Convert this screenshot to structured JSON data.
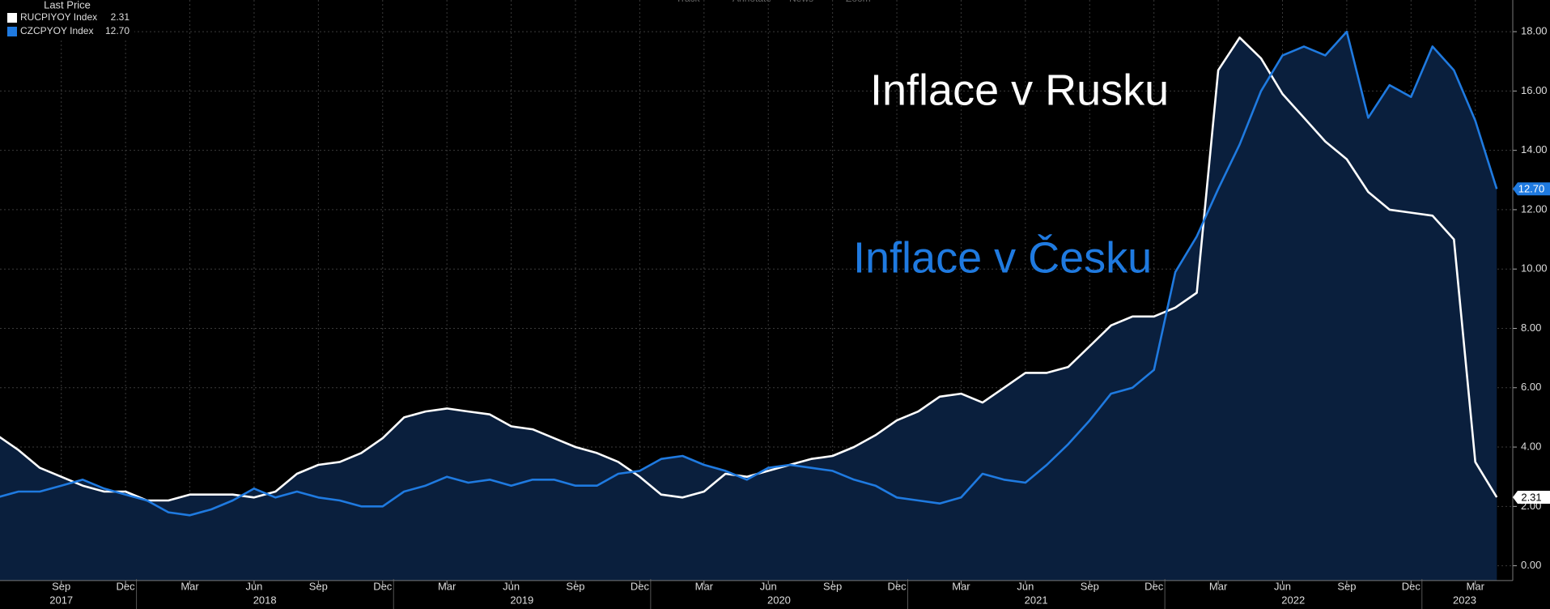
{
  "chart_data": {
    "type": "line",
    "legend_title": "Last Price",
    "toolbar": [
      "Track",
      "Annotate",
      "News",
      "Zoom"
    ],
    "annotations": [
      {
        "text": "Inflace  v Rusku",
        "color": "#ffffff"
      },
      {
        "text": "Inflace v Česku",
        "color": "#1f7ae0"
      }
    ],
    "x": [
      "2017-06",
      "2017-07",
      "2017-08",
      "2017-09",
      "2017-10",
      "2017-11",
      "2017-12",
      "2018-01",
      "2018-02",
      "2018-03",
      "2018-04",
      "2018-05",
      "2018-06",
      "2018-07",
      "2018-08",
      "2018-09",
      "2018-10",
      "2018-11",
      "2018-12",
      "2019-01",
      "2019-02",
      "2019-03",
      "2019-04",
      "2019-05",
      "2019-06",
      "2019-07",
      "2019-08",
      "2019-09",
      "2019-10",
      "2019-11",
      "2019-12",
      "2020-01",
      "2020-02",
      "2020-03",
      "2020-04",
      "2020-05",
      "2020-06",
      "2020-07",
      "2020-08",
      "2020-09",
      "2020-10",
      "2020-11",
      "2020-12",
      "2021-01",
      "2021-02",
      "2021-03",
      "2021-04",
      "2021-05",
      "2021-06",
      "2021-07",
      "2021-08",
      "2021-09",
      "2021-10",
      "2021-11",
      "2021-12",
      "2022-01",
      "2022-02",
      "2022-03",
      "2022-04",
      "2022-05",
      "2022-06",
      "2022-07",
      "2022-08",
      "2022-09",
      "2022-10",
      "2022-11",
      "2022-12",
      "2023-01",
      "2023-02",
      "2023-03",
      "2023-04"
    ],
    "xticks": [
      {
        "value": "2017-09",
        "label": "Sep"
      },
      {
        "value": "2017-12",
        "label": "Dec"
      },
      {
        "value": "2018-03",
        "label": "Mar"
      },
      {
        "value": "2018-06",
        "label": "Jun"
      },
      {
        "value": "2018-09",
        "label": "Sep"
      },
      {
        "value": "2018-12",
        "label": "Dec"
      },
      {
        "value": "2019-03",
        "label": "Mar"
      },
      {
        "value": "2019-06",
        "label": "Jun"
      },
      {
        "value": "2019-09",
        "label": "Sep"
      },
      {
        "value": "2019-12",
        "label": "Dec"
      },
      {
        "value": "2020-03",
        "label": "Mar"
      },
      {
        "value": "2020-06",
        "label": "Jun"
      },
      {
        "value": "2020-09",
        "label": "Sep"
      },
      {
        "value": "2020-12",
        "label": "Dec"
      },
      {
        "value": "2021-03",
        "label": "Mar"
      },
      {
        "value": "2021-06",
        "label": "Jun"
      },
      {
        "value": "2021-09",
        "label": "Sep"
      },
      {
        "value": "2021-12",
        "label": "Dec"
      },
      {
        "value": "2022-03",
        "label": "Mar"
      },
      {
        "value": "2022-06",
        "label": "Jun"
      },
      {
        "value": "2022-09",
        "label": "Sep"
      },
      {
        "value": "2022-12",
        "label": "Dec"
      },
      {
        "value": "2023-03",
        "label": "Mar"
      }
    ],
    "x_year_labels": [
      "2017",
      "2018",
      "2019",
      "2020",
      "2021",
      "2022",
      "2023"
    ],
    "ylim": [
      -0.5,
      18.5
    ],
    "yticks": [
      {
        "value": 0,
        "label": "0.00"
      },
      {
        "value": 2,
        "label": "2.00"
      },
      {
        "value": 4,
        "label": "4.00"
      },
      {
        "value": 6,
        "label": "6.00"
      },
      {
        "value": 8,
        "label": "8.00"
      },
      {
        "value": 10,
        "label": "10.00"
      },
      {
        "value": 12,
        "label": "12.00"
      },
      {
        "value": 14,
        "label": "14.00"
      },
      {
        "value": 16,
        "label": "16.00"
      },
      {
        "value": 18,
        "label": "18.00"
      }
    ],
    "grid": true,
    "area_fill": "#0a1f3d",
    "series": [
      {
        "name": "RUCPIYOY Index",
        "color": "#ffffff",
        "last_price": "2.31",
        "values": [
          4.4,
          3.9,
          3.3,
          3.0,
          2.7,
          2.5,
          2.5,
          2.2,
          2.2,
          2.4,
          2.4,
          2.4,
          2.3,
          2.5,
          3.1,
          3.4,
          3.5,
          3.8,
          4.3,
          5.0,
          5.2,
          5.3,
          5.2,
          5.1,
          4.7,
          4.6,
          4.3,
          4.0,
          3.8,
          3.5,
          3.0,
          2.4,
          2.3,
          2.5,
          3.1,
          3.0,
          3.2,
          3.4,
          3.6,
          3.7,
          4.0,
          4.4,
          4.9,
          5.2,
          5.7,
          5.8,
          5.5,
          6.0,
          6.5,
          6.5,
          6.7,
          7.4,
          8.1,
          8.4,
          8.4,
          8.7,
          9.2,
          16.7,
          17.8,
          17.1,
          15.9,
          15.1,
          14.3,
          13.7,
          12.6,
          12.0,
          11.9,
          11.8,
          11.0,
          3.5,
          2.31
        ]
      },
      {
        "name": "CZCPYOY Index",
        "color": "#1f7ae0",
        "last_price": "12.70",
        "values": [
          2.3,
          2.5,
          2.5,
          2.7,
          2.9,
          2.6,
          2.4,
          2.2,
          1.8,
          1.7,
          1.9,
          2.2,
          2.6,
          2.3,
          2.5,
          2.3,
          2.2,
          2.0,
          2.0,
          2.5,
          2.7,
          3.0,
          2.8,
          2.9,
          2.7,
          2.9,
          2.9,
          2.7,
          2.7,
          3.1,
          3.2,
          3.6,
          3.7,
          3.4,
          3.2,
          2.9,
          3.3,
          3.4,
          3.3,
          3.2,
          2.9,
          2.7,
          2.3,
          2.2,
          2.1,
          2.3,
          3.1,
          2.9,
          2.8,
          3.4,
          4.1,
          4.9,
          5.8,
          6.0,
          6.6,
          9.9,
          11.1,
          12.7,
          14.2,
          16.0,
          17.2,
          17.5,
          17.2,
          18.0,
          15.1,
          16.2,
          15.8,
          17.5,
          16.7,
          15.0,
          12.7
        ]
      }
    ]
  }
}
